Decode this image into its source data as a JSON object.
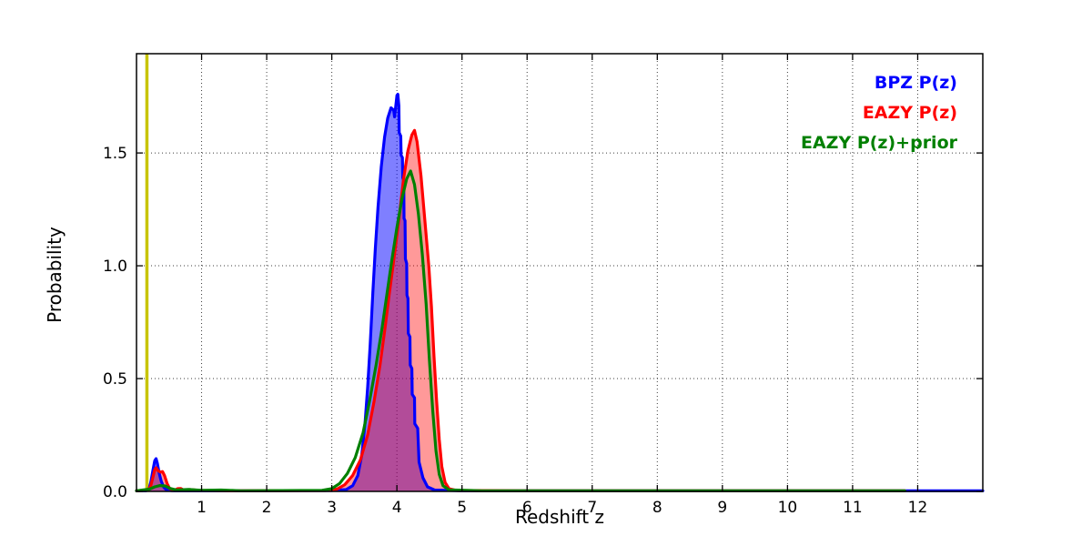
{
  "figure": {
    "background": "#ffffff"
  },
  "legend": {
    "position": "top-right",
    "entries": [
      {
        "label": "BPZ P(z)",
        "color": "#0000ff"
      },
      {
        "label": "EAZY P(z)",
        "color": "#ff0000"
      },
      {
        "label": "EAZY P(z)+prior",
        "color": "#008000"
      }
    ]
  },
  "chart_data": {
    "type": "area",
    "title": "",
    "xlabel": "Redshift z",
    "ylabel": "Probability",
    "xlim": [
      0,
      13
    ],
    "ylim": [
      0,
      1.94
    ],
    "grid": "dotted",
    "grid_color": "#3c3c3c",
    "xticks": [
      1,
      2,
      3,
      4,
      5,
      6,
      7,
      8,
      9,
      10,
      11,
      12
    ],
    "xtick_labels": [
      "1",
      "2",
      "3",
      "4",
      "5",
      "6",
      "7",
      "8",
      "9",
      "10",
      "11",
      "12"
    ],
    "yticks": [
      0,
      0.5,
      1.0,
      1.5
    ],
    "ytick_labels": [
      "0.0",
      "0.5",
      "1.0",
      "1.5"
    ],
    "vline": {
      "x": 0.16,
      "color": "#c8c400",
      "width": 3.5
    },
    "series": [
      {
        "id": "bpz",
        "name": "BPZ P(z)",
        "color": "#0000ff",
        "fill": "rgba(0,0,255,0.5)",
        "line_width": 3.2,
        "points": [
          [
            0,
            0.003
          ],
          [
            0.15,
            0.003
          ],
          [
            0.19,
            0.01
          ],
          [
            0.22,
            0.04
          ],
          [
            0.25,
            0.09
          ],
          [
            0.28,
            0.135
          ],
          [
            0.3,
            0.145
          ],
          [
            0.32,
            0.125
          ],
          [
            0.35,
            0.08
          ],
          [
            0.38,
            0.045
          ],
          [
            0.42,
            0.018
          ],
          [
            0.46,
            0.007
          ],
          [
            0.55,
            0.003
          ],
          [
            1.5,
            0.003
          ],
          [
            3.0,
            0.004
          ],
          [
            3.22,
            0.008
          ],
          [
            3.32,
            0.025
          ],
          [
            3.4,
            0.07
          ],
          [
            3.46,
            0.16
          ],
          [
            3.51,
            0.3
          ],
          [
            3.55,
            0.46
          ],
          [
            3.59,
            0.65
          ],
          [
            3.63,
            0.88
          ],
          [
            3.67,
            1.08
          ],
          [
            3.71,
            1.26
          ],
          [
            3.76,
            1.44
          ],
          [
            3.81,
            1.57
          ],
          [
            3.86,
            1.655
          ],
          [
            3.91,
            1.7
          ],
          [
            3.95,
            1.69
          ],
          [
            3.965,
            1.66
          ],
          [
            3.98,
            1.7
          ],
          [
            4.0,
            1.755
          ],
          [
            4.015,
            1.76
          ],
          [
            4.03,
            1.71
          ],
          [
            4.035,
            1.59
          ],
          [
            4.06,
            1.575
          ],
          [
            4.065,
            1.49
          ],
          [
            4.085,
            1.48
          ],
          [
            4.09,
            1.39
          ],
          [
            4.105,
            1.375
          ],
          [
            4.11,
            1.21
          ],
          [
            4.125,
            1.2
          ],
          [
            4.13,
            1.03
          ],
          [
            4.15,
            1.01
          ],
          [
            4.155,
            0.87
          ],
          [
            4.17,
            0.855
          ],
          [
            4.175,
            0.7
          ],
          [
            4.2,
            0.685
          ],
          [
            4.205,
            0.56
          ],
          [
            4.23,
            0.545
          ],
          [
            4.235,
            0.43
          ],
          [
            4.27,
            0.415
          ],
          [
            4.275,
            0.3
          ],
          [
            4.32,
            0.28
          ],
          [
            4.34,
            0.13
          ],
          [
            4.4,
            0.06
          ],
          [
            4.47,
            0.02
          ],
          [
            4.58,
            0.006
          ],
          [
            5.0,
            0.003
          ],
          [
            13.0,
            0.003
          ]
        ]
      },
      {
        "id": "eazy",
        "name": "EAZY P(z)",
        "color": "#ff0000",
        "fill": "rgba(255,0,0,0.4)",
        "line_width": 3.2,
        "points": [
          [
            0,
            0.003
          ],
          [
            0.18,
            0.006
          ],
          [
            0.22,
            0.025
          ],
          [
            0.25,
            0.06
          ],
          [
            0.28,
            0.095
          ],
          [
            0.3,
            0.105
          ],
          [
            0.33,
            0.092
          ],
          [
            0.37,
            0.085
          ],
          [
            0.4,
            0.088
          ],
          [
            0.43,
            0.07
          ],
          [
            0.47,
            0.035
          ],
          [
            0.51,
            0.012
          ],
          [
            0.58,
            0.005
          ],
          [
            0.63,
            0.012
          ],
          [
            0.68,
            0.013
          ],
          [
            0.73,
            0.005
          ],
          [
            0.82,
            0.008
          ],
          [
            0.95,
            0.005
          ],
          [
            1.5,
            0.003
          ],
          [
            2.9,
            0.004
          ],
          [
            3.08,
            0.01
          ],
          [
            3.2,
            0.03
          ],
          [
            3.32,
            0.07
          ],
          [
            3.44,
            0.14
          ],
          [
            3.55,
            0.25
          ],
          [
            3.65,
            0.4
          ],
          [
            3.74,
            0.56
          ],
          [
            3.82,
            0.73
          ],
          [
            3.88,
            0.87
          ],
          [
            3.94,
            1.0
          ],
          [
            4.02,
            1.18
          ],
          [
            4.1,
            1.38
          ],
          [
            4.17,
            1.51
          ],
          [
            4.23,
            1.58
          ],
          [
            4.27,
            1.6
          ],
          [
            4.31,
            1.55
          ],
          [
            4.37,
            1.4
          ],
          [
            4.43,
            1.2
          ],
          [
            4.49,
            1.0
          ],
          [
            4.53,
            0.82
          ],
          [
            4.57,
            0.6
          ],
          [
            4.61,
            0.4
          ],
          [
            4.65,
            0.23
          ],
          [
            4.69,
            0.11
          ],
          [
            4.74,
            0.04
          ],
          [
            4.8,
            0.012
          ],
          [
            4.92,
            0.004
          ],
          [
            6.0,
            0.003
          ],
          [
            11.8,
            0.003
          ]
        ]
      },
      {
        "id": "eazy-prior",
        "name": "EAZY P(z)+prior",
        "color": "#008000",
        "fill": null,
        "line_width": 3.2,
        "points": [
          [
            0,
            0.003
          ],
          [
            0.2,
            0.01
          ],
          [
            0.28,
            0.02
          ],
          [
            0.36,
            0.026
          ],
          [
            0.44,
            0.024
          ],
          [
            0.52,
            0.013
          ],
          [
            0.62,
            0.006
          ],
          [
            0.8,
            0.009
          ],
          [
            1.0,
            0.005
          ],
          [
            1.3,
            0.006
          ],
          [
            1.6,
            0.003
          ],
          [
            2.85,
            0.005
          ],
          [
            3.0,
            0.012
          ],
          [
            3.12,
            0.035
          ],
          [
            3.24,
            0.08
          ],
          [
            3.36,
            0.15
          ],
          [
            3.48,
            0.26
          ],
          [
            3.58,
            0.4
          ],
          [
            3.68,
            0.56
          ],
          [
            3.77,
            0.72
          ],
          [
            3.85,
            0.88
          ],
          [
            3.92,
            1.02
          ],
          [
            4.0,
            1.17
          ],
          [
            4.08,
            1.3
          ],
          [
            4.15,
            1.385
          ],
          [
            4.21,
            1.42
          ],
          [
            4.27,
            1.36
          ],
          [
            4.33,
            1.23
          ],
          [
            4.39,
            1.05
          ],
          [
            4.45,
            0.83
          ],
          [
            4.5,
            0.58
          ],
          [
            4.55,
            0.36
          ],
          [
            4.6,
            0.18
          ],
          [
            4.65,
            0.075
          ],
          [
            4.71,
            0.025
          ],
          [
            4.8,
            0.007
          ],
          [
            5.3,
            0.003
          ],
          [
            11.8,
            0.003
          ]
        ]
      }
    ]
  }
}
